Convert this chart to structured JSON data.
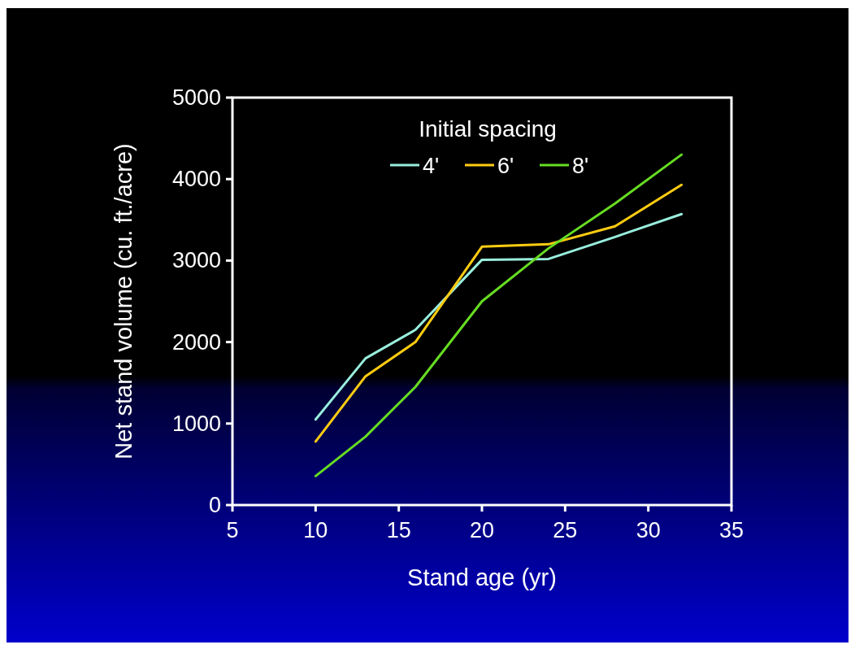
{
  "chart_data": {
    "type": "line",
    "xlabel": "Stand age (yr)",
    "ylabel": "Net stand volume (cu. ft./acre)",
    "legend_title": "Initial spacing",
    "legend": "top",
    "grid": false,
    "marker": "none",
    "line_style": "solid",
    "xlim": [
      5,
      35
    ],
    "xticks": [
      5,
      10,
      15,
      20,
      25,
      30,
      35
    ],
    "ylim": [
      0,
      5000
    ],
    "yticks": [
      0,
      1000,
      2000,
      3000,
      4000,
      5000
    ],
    "x": [
      10,
      13,
      16,
      20,
      24,
      28,
      32
    ],
    "series": [
      {
        "name": "4'",
        "color": "#99eedd",
        "values": [
          1050,
          1800,
          2150,
          3010,
          3020,
          3290,
          3570
        ]
      },
      {
        "name": "6'",
        "color": "#ffcc11",
        "values": [
          780,
          1580,
          2000,
          3170,
          3200,
          3420,
          3930
        ]
      },
      {
        "name": "8'",
        "color": "#66dd22",
        "values": [
          355,
          840,
          1450,
          2500,
          3150,
          3700,
          4300
        ]
      }
    ]
  }
}
